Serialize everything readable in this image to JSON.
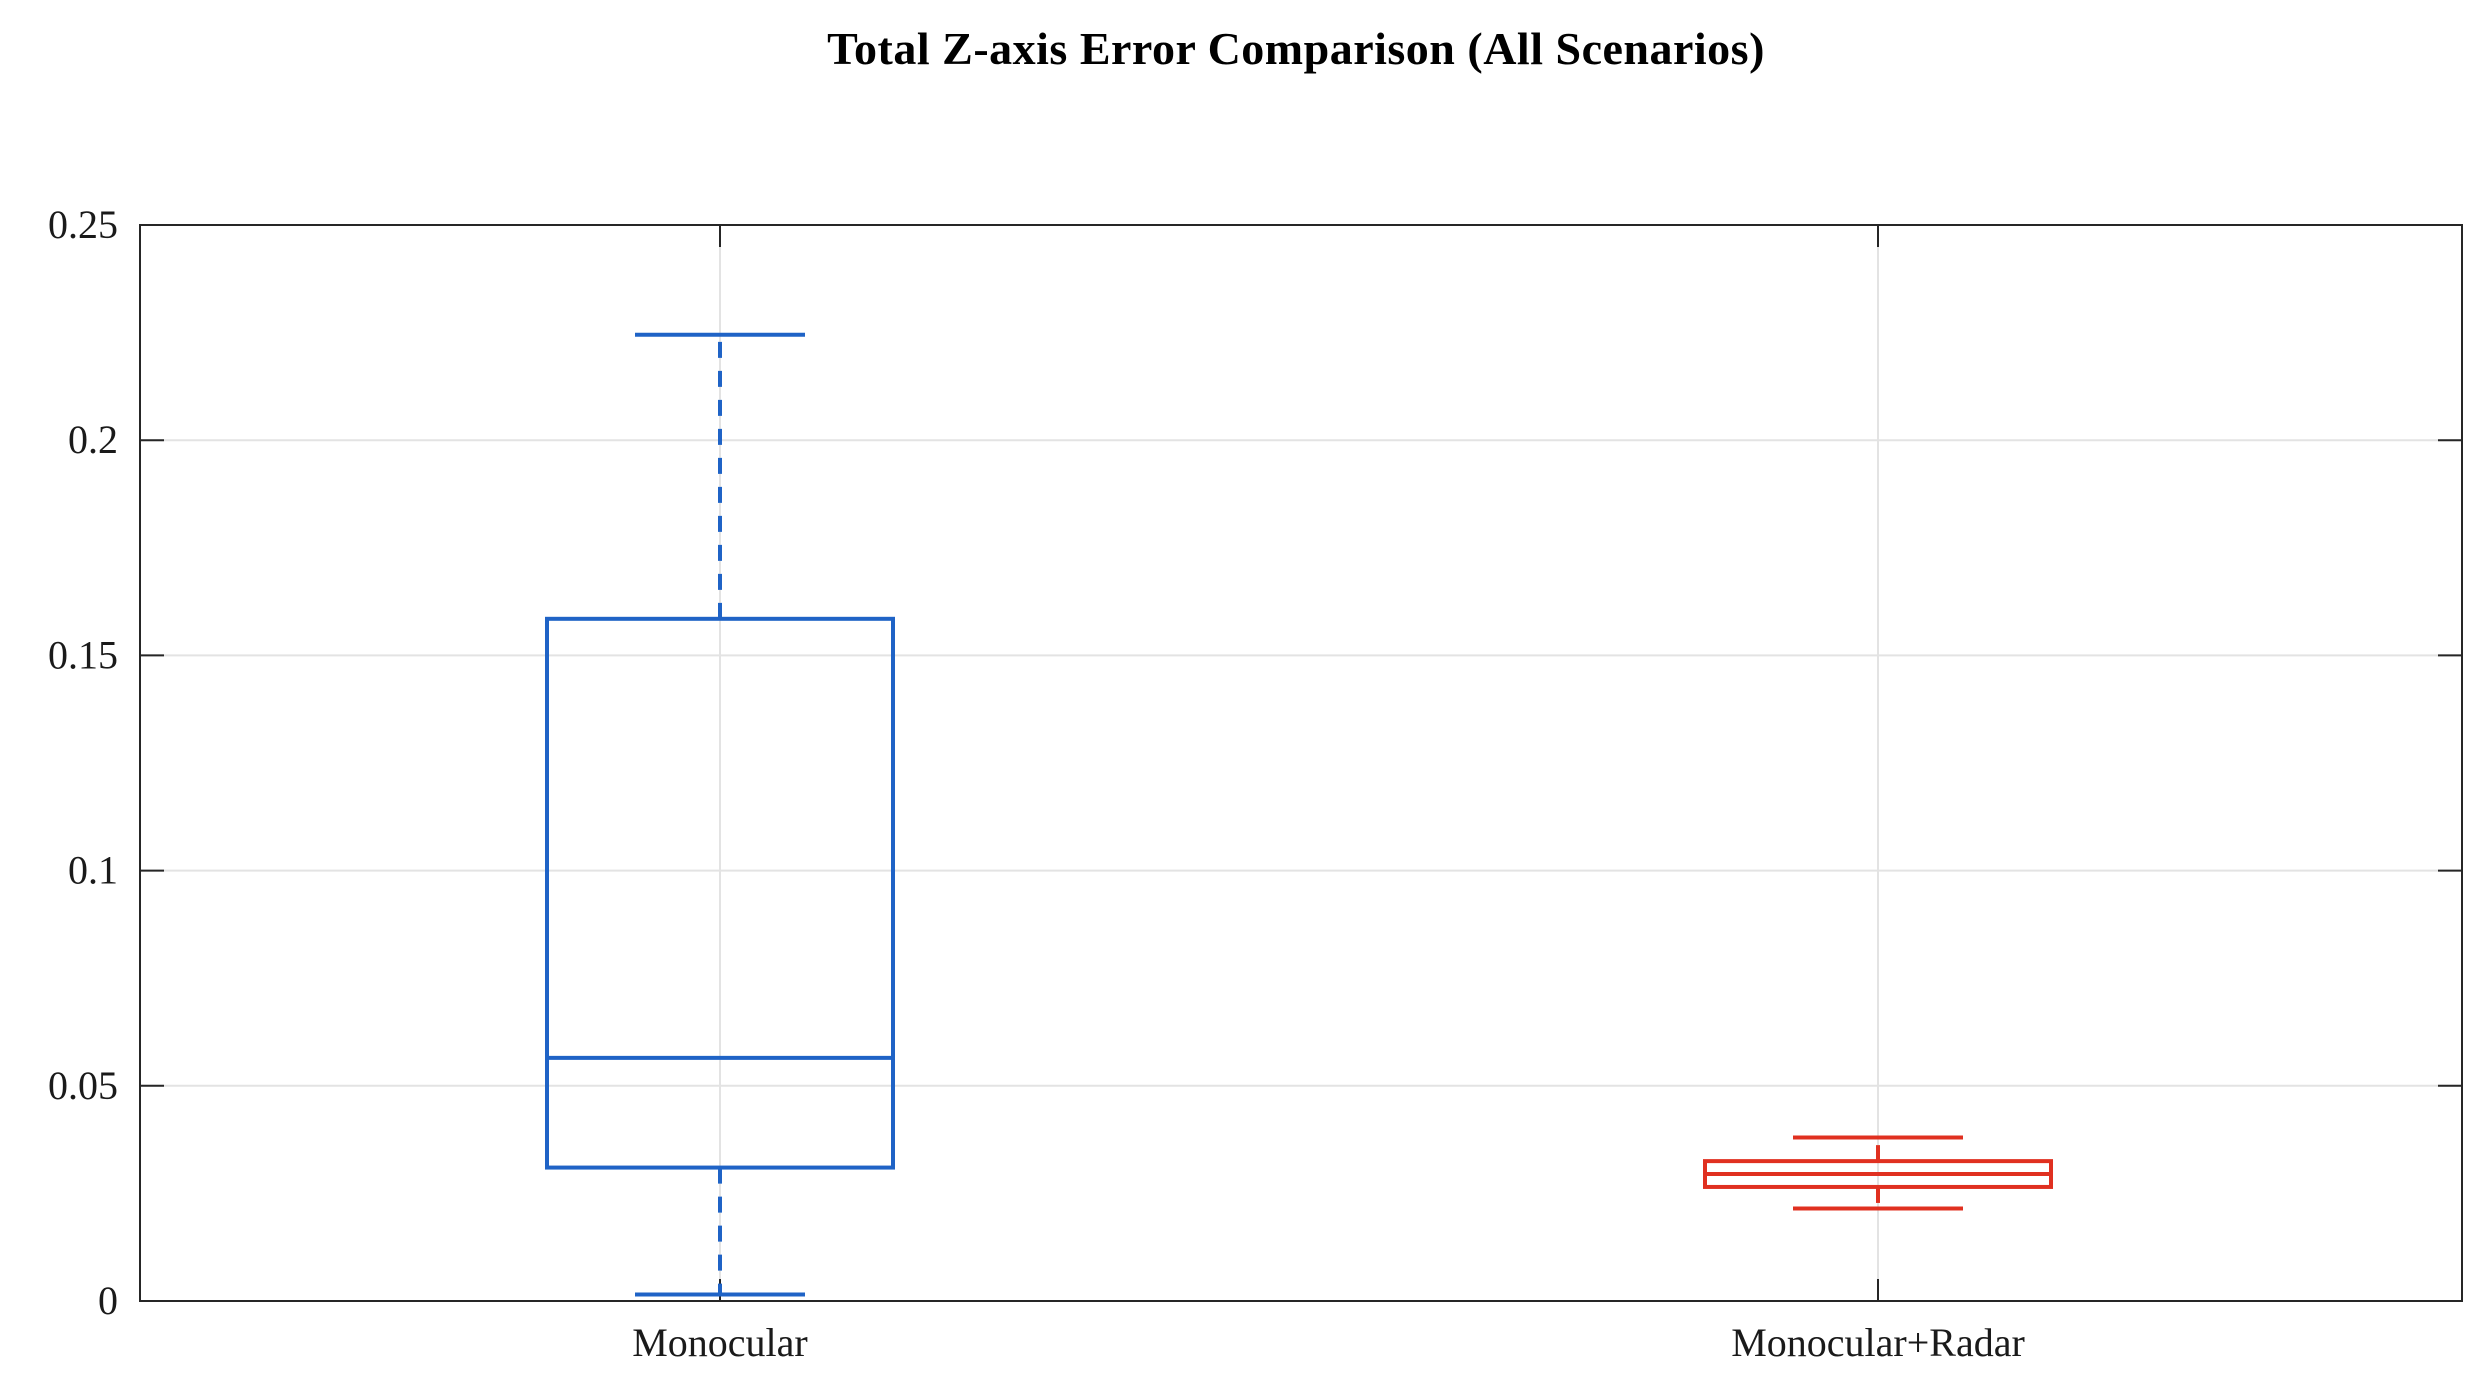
{
  "chart_data": {
    "type": "box",
    "title": "Total Z-axis Error Comparison (All Scenarios)",
    "xlabel": "",
    "ylabel": "",
    "ylim": [
      0,
      0.25
    ],
    "yticks": [
      0,
      0.05,
      0.1,
      0.15,
      0.2,
      0.25
    ],
    "ytick_labels": [
      "0",
      "0.05",
      "0.1",
      "0.15",
      "0.2",
      "0.25"
    ],
    "grid": true,
    "categories": [
      "Monocular",
      "Monocular+Radar"
    ],
    "boxes": [
      {
        "category": "Monocular",
        "whisker_low": 0.0015,
        "q1": 0.031,
        "median": 0.0565,
        "q3": 0.1585,
        "whisker_high": 0.2245,
        "color": "#1f63c6"
      },
      {
        "category": "Monocular+Radar",
        "whisker_low": 0.0215,
        "q1": 0.0265,
        "median": 0.0295,
        "q3": 0.0325,
        "whisker_high": 0.038,
        "color": "#e03020"
      }
    ]
  }
}
